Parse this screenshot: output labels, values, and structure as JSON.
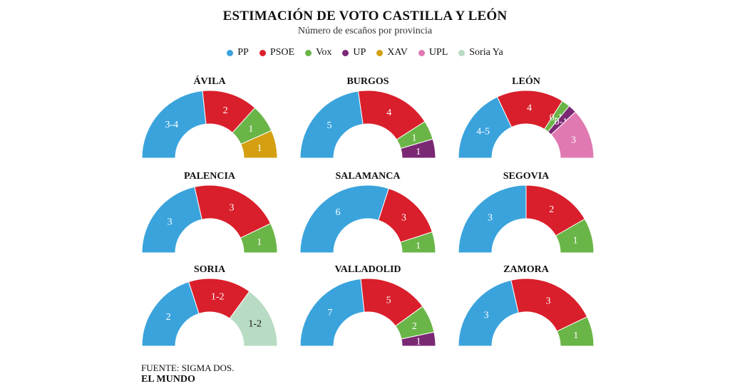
{
  "title": "ESTIMACIÓN DE VOTO CASTILLA Y LEÓN",
  "subtitle": "Número de escaños por provincia",
  "legend": [
    {
      "name": "PP",
      "color": "#3aa3dc"
    },
    {
      "name": "PSOE",
      "color": "#d91f2b"
    },
    {
      "name": "Vox",
      "color": "#6ab547"
    },
    {
      "name": "UP",
      "color": "#7b2874"
    },
    {
      "name": "XAV",
      "color": "#d4a012"
    },
    {
      "name": "UPL",
      "color": "#e079b1"
    },
    {
      "name": "Soria Ya",
      "color": "#b8dcc3"
    }
  ],
  "source": "FUENTE: SIGMA DOS.",
  "brand": "EL MUNDO",
  "chart_data": {
    "type": "pie",
    "variant": "hemicycle",
    "provinces": [
      {
        "name": "ÁVILA",
        "segments": [
          {
            "party": "PP",
            "label": "3-4",
            "seats": 3.5
          },
          {
            "party": "PSOE",
            "label": "2",
            "seats": 2
          },
          {
            "party": "Vox",
            "label": "1",
            "seats": 1
          },
          {
            "party": "XAV",
            "label": "1",
            "seats": 1
          }
        ]
      },
      {
        "name": "BURGOS",
        "segments": [
          {
            "party": "PP",
            "label": "5",
            "seats": 5
          },
          {
            "party": "PSOE",
            "label": "4",
            "seats": 4
          },
          {
            "party": "Vox",
            "label": "1",
            "seats": 1
          },
          {
            "party": "UP",
            "label": "1",
            "seats": 1
          }
        ]
      },
      {
        "name": "LEÓN",
        "segments": [
          {
            "party": "PP",
            "label": "4-5",
            "seats": 4.5
          },
          {
            "party": "PSOE",
            "label": "4",
            "seats": 4
          },
          {
            "party": "Vox",
            "label": "0-1",
            "seats": 0.5
          },
          {
            "party": "UP",
            "label": "0-1",
            "seats": 0.5
          },
          {
            "party": "UPL",
            "label": "3",
            "seats": 3
          }
        ]
      },
      {
        "name": "PALENCIA",
        "segments": [
          {
            "party": "PP",
            "label": "3",
            "seats": 3
          },
          {
            "party": "PSOE",
            "label": "3",
            "seats": 3
          },
          {
            "party": "Vox",
            "label": "1",
            "seats": 1
          }
        ]
      },
      {
        "name": "SALAMANCA",
        "segments": [
          {
            "party": "PP",
            "label": "6",
            "seats": 6
          },
          {
            "party": "PSOE",
            "label": "3",
            "seats": 3
          },
          {
            "party": "Vox",
            "label": "1",
            "seats": 1
          }
        ]
      },
      {
        "name": "SEGOVIA",
        "segments": [
          {
            "party": "PP",
            "label": "3",
            "seats": 3
          },
          {
            "party": "PSOE",
            "label": "2",
            "seats": 2
          },
          {
            "party": "Vox",
            "label": "1",
            "seats": 1
          }
        ]
      },
      {
        "name": "SORIA",
        "segments": [
          {
            "party": "PP",
            "label": "2",
            "seats": 2
          },
          {
            "party": "PSOE",
            "label": "1-2",
            "seats": 1.5
          },
          {
            "party": "Soria Ya",
            "label": "1-2",
            "seats": 1.5
          }
        ]
      },
      {
        "name": "VALLADOLID",
        "segments": [
          {
            "party": "PP",
            "label": "7",
            "seats": 7
          },
          {
            "party": "PSOE",
            "label": "5",
            "seats": 5
          },
          {
            "party": "Vox",
            "label": "2",
            "seats": 2
          },
          {
            "party": "UP",
            "label": "1",
            "seats": 1
          }
        ]
      },
      {
        "name": "ZAMORA",
        "segments": [
          {
            "party": "PP",
            "label": "3",
            "seats": 3
          },
          {
            "party": "PSOE",
            "label": "3",
            "seats": 3
          },
          {
            "party": "Vox",
            "label": "1",
            "seats": 1
          }
        ]
      }
    ]
  }
}
